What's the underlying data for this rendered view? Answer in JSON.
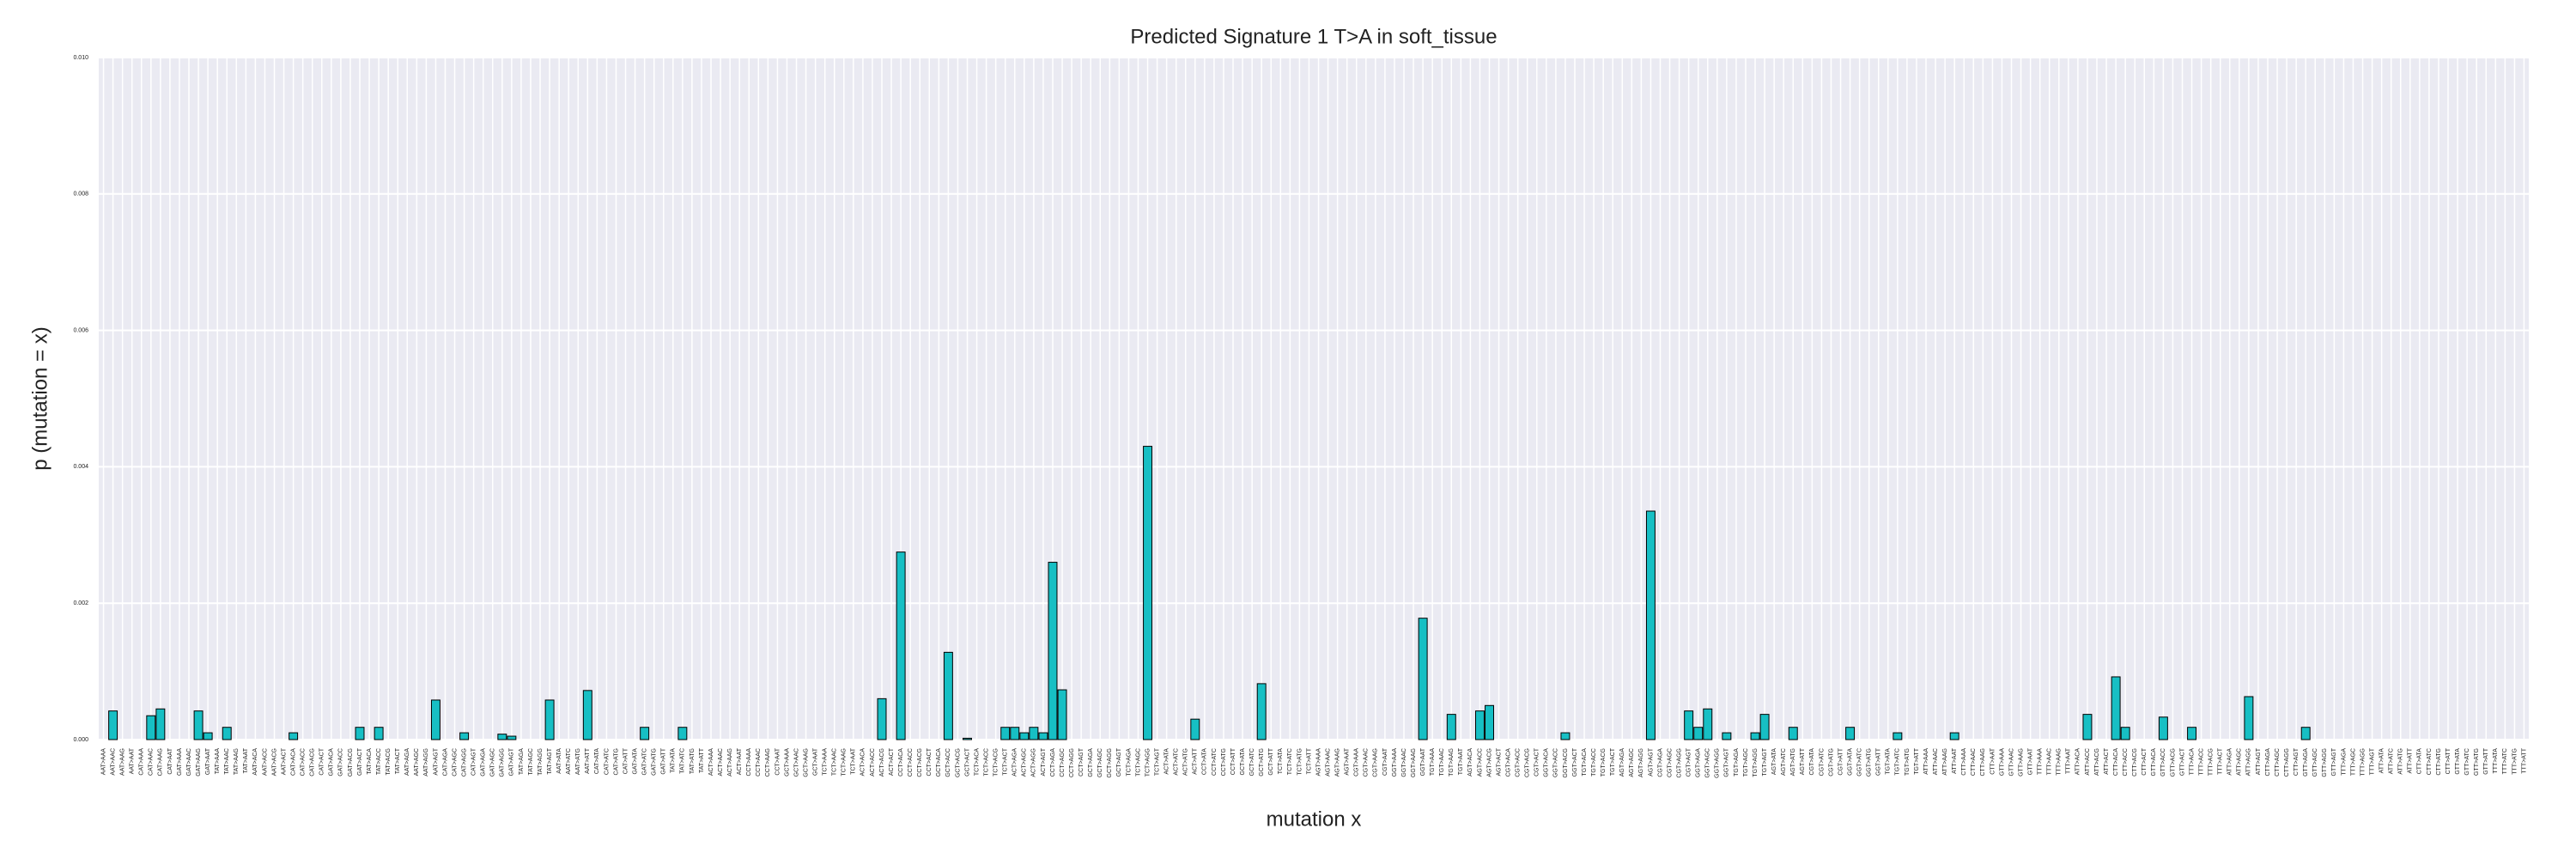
{
  "chart_data": {
    "type": "bar",
    "title": "Predicted Signature 1 T>A in soft_tissue",
    "xlabel": "mutation x",
    "ylabel": "p (mutation = x)",
    "color": "#17bfc4",
    "grid": true,
    "ylim": [
      0,
      0.01
    ],
    "yticks": [
      {
        "value": 0,
        "label": "0.000"
      },
      {
        "value": 0.002,
        "label": "0.002"
      },
      {
        "value": 0.004,
        "label": "0.004"
      },
      {
        "value": 0.006,
        "label": "0.006"
      },
      {
        "value": 0.008,
        "label": "0.008"
      },
      {
        "value": 0.01,
        "label": "0.010"
      }
    ],
    "categories": [
      "AAT>AAA",
      "AAT>AAC",
      "AAT>AAG",
      "AAT>AAT",
      "CAT>AAA",
      "CAT>AAC",
      "CAT>AAG",
      "CAT>AAT",
      "GAT>AAA",
      "GAT>AAC",
      "GAT>AAG",
      "GAT>AAT",
      "TAT>AAA",
      "TAT>AAC",
      "TAT>AAG",
      "TAT>AAT",
      "AAT>ACA",
      "AAT>ACC",
      "AAT>ACG",
      "AAT>ACT",
      "CAT>ACA",
      "CAT>ACC",
      "CAT>ACG",
      "CAT>ACT",
      "GAT>ACA",
      "GAT>ACC",
      "GAT>ACG",
      "GAT>ACT",
      "TAT>ACA",
      "TAT>ACC",
      "TAT>ACG",
      "TAT>ACT",
      "AAT>AGA",
      "AAT>AGC",
      "AAT>AGG",
      "AAT>AGT",
      "CAT>AGA",
      "CAT>AGC",
      "CAT>AGG",
      "CAT>AGT",
      "GAT>AGA",
      "GAT>AGC",
      "GAT>AGG",
      "GAT>AGT",
      "TAT>AGA",
      "TAT>AGC",
      "TAT>AGG",
      "TAT>AGT",
      "AAT>ATA",
      "AAT>ATC",
      "AAT>ATG",
      "AAT>ATT",
      "CAT>ATA",
      "CAT>ATC",
      "CAT>ATG",
      "CAT>ATT",
      "GAT>ATA",
      "GAT>ATC",
      "GAT>ATG",
      "GAT>ATT",
      "TAT>ATA",
      "TAT>ATC",
      "TAT>ATG",
      "TAT>ATT",
      "ACT>AAA",
      "ACT>AAC",
      "ACT>AAG",
      "ACT>AAT",
      "CCT>AAA",
      "CCT>AAC",
      "CCT>AAG",
      "CCT>AAT",
      "GCT>AAA",
      "GCT>AAC",
      "GCT>AAG",
      "GCT>AAT",
      "TCT>AAA",
      "TCT>AAC",
      "TCT>AAG",
      "TCT>AAT",
      "ACT>ACA",
      "ACT>ACC",
      "ACT>ACG",
      "ACT>ACT",
      "CCT>ACA",
      "CCT>ACC",
      "CCT>ACG",
      "CCT>ACT",
      "GCT>ACA",
      "GCT>ACC",
      "GCT>ACG",
      "GCT>ACT",
      "TCT>ACA",
      "TCT>ACC",
      "TCT>ACG",
      "TCT>ACT",
      "ACT>AGA",
      "ACT>AGC",
      "ACT>AGG",
      "ACT>AGT",
      "CCT>AGA",
      "CCT>AGC",
      "CCT>AGG",
      "CCT>AGT",
      "GCT>AGA",
      "GCT>AGC",
      "GCT>AGG",
      "GCT>AGT",
      "TCT>AGA",
      "TCT>AGC",
      "TCT>AGG",
      "TCT>AGT",
      "ACT>ATA",
      "ACT>ATC",
      "ACT>ATG",
      "ACT>ATT",
      "CCT>ATA",
      "CCT>ATC",
      "CCT>ATG",
      "CCT>ATT",
      "GCT>ATA",
      "GCT>ATC",
      "GCT>ATG",
      "GCT>ATT",
      "TCT>ATA",
      "TCT>ATC",
      "TCT>ATG",
      "TCT>ATT",
      "AGT>AAA",
      "AGT>AAC",
      "AGT>AAG",
      "AGT>AAT",
      "CGT>AAA",
      "CGT>AAC",
      "CGT>AAG",
      "CGT>AAT",
      "GGT>AAA",
      "GGT>AAC",
      "GGT>AAG",
      "GGT>AAT",
      "TGT>AAA",
      "TGT>AAC",
      "TGT>AAG",
      "TGT>AAT",
      "AGT>ACA",
      "AGT>ACC",
      "AGT>ACG",
      "AGT>ACT",
      "CGT>ACA",
      "CGT>ACC",
      "CGT>ACG",
      "CGT>ACT",
      "GGT>ACA",
      "GGT>ACC",
      "GGT>ACG",
      "GGT>ACT",
      "TGT>ACA",
      "TGT>ACC",
      "TGT>ACG",
      "TGT>ACT",
      "AGT>AGA",
      "AGT>AGC",
      "AGT>AGG",
      "AGT>AGT",
      "CGT>AGA",
      "CGT>AGC",
      "CGT>AGG",
      "CGT>AGT",
      "GGT>AGA",
      "GGT>AGC",
      "GGT>AGG",
      "GGT>AGT",
      "TGT>AGA",
      "TGT>AGC",
      "TGT>AGG",
      "TGT>AGT",
      "AGT>ATA",
      "AGT>ATC",
      "AGT>ATG",
      "AGT>ATT",
      "CGT>ATA",
      "CGT>ATC",
      "CGT>ATG",
      "CGT>ATT",
      "GGT>ATA",
      "GGT>ATC",
      "GGT>ATG",
      "GGT>ATT",
      "TGT>ATA",
      "TGT>ATC",
      "TGT>ATG",
      "TGT>ATT",
      "ATT>AAA",
      "ATT>AAC",
      "ATT>AAG",
      "ATT>AAT",
      "CTT>AAA",
      "CTT>AAC",
      "CTT>AAG",
      "CTT>AAT",
      "GTT>AAA",
      "GTT>AAC",
      "GTT>AAG",
      "GTT>AAT",
      "TTT>AAA",
      "TTT>AAC",
      "TTT>AAG",
      "TTT>AAT",
      "ATT>ACA",
      "ATT>ACC",
      "ATT>ACG",
      "ATT>ACT",
      "CTT>ACA",
      "CTT>ACC",
      "CTT>ACG",
      "CTT>ACT",
      "GTT>ACA",
      "GTT>ACC",
      "GTT>ACG",
      "GTT>ACT",
      "TTT>ACA",
      "TTT>ACC",
      "TTT>ACG",
      "TTT>ACT",
      "ATT>AGA",
      "ATT>AGC",
      "ATT>AGG",
      "ATT>AGT",
      "CTT>AGA",
      "CTT>AGC",
      "CTT>AGG",
      "CTT>AGT",
      "GTT>AGA",
      "GTT>AGC",
      "GTT>AGG",
      "GTT>AGT",
      "TTT>AGA",
      "TTT>AGC",
      "TTT>AGG",
      "TTT>AGT",
      "ATT>ATA",
      "ATT>ATC",
      "ATT>ATG",
      "ATT>ATT",
      "CTT>ATA",
      "CTT>ATC",
      "CTT>ATG",
      "CTT>ATT",
      "GTT>ATA",
      "GTT>ATC",
      "GTT>ATG",
      "GTT>ATT",
      "TTT>ATA",
      "TTT>ATC",
      "TTT>ATG",
      "TTT>ATT"
    ],
    "values": [
      0,
      0.00042,
      0,
      0,
      0,
      0.00035,
      0.00045,
      0,
      0,
      0,
      0.00042,
      0.0001,
      0,
      0.00018,
      0,
      0,
      0,
      0,
      0,
      0,
      0.0001,
      0,
      0,
      0,
      0,
      0,
      0,
      0.00018,
      0,
      0.00018,
      0,
      0,
      0,
      0,
      0,
      0.00058,
      0,
      0,
      0.0001,
      0,
      0,
      0,
      8e-05,
      5e-05,
      0,
      0,
      0,
      0.00058,
      0,
      0,
      0,
      0.00072,
      0,
      0,
      0,
      0,
      0,
      0.00018,
      0,
      0,
      0,
      0.00018,
      0,
      0,
      0,
      0,
      0,
      0,
      0,
      0,
      0,
      0,
      0,
      0,
      0,
      0,
      0,
      0,
      0,
      0,
      0,
      0,
      0.0006,
      0,
      0.00275,
      0,
      0,
      0,
      0,
      0.00128,
      0,
      2e-05,
      0,
      0,
      0,
      0.00018,
      0.00018,
      0.0001,
      0.00018,
      0.0001,
      0.0026,
      0.00073,
      0,
      0,
      0,
      0,
      0,
      0,
      0,
      0,
      0.0043,
      0,
      0,
      0,
      0,
      0.0003,
      0,
      0,
      0,
      0,
      0,
      0,
      0.00082,
      0,
      0,
      0,
      0,
      0,
      0,
      0,
      0,
      0,
      0,
      0,
      0,
      0,
      0,
      0,
      0,
      0.00178,
      0,
      0,
      0.00037,
      0,
      0,
      0.00042,
      0.0005,
      0,
      0,
      0,
      0,
      0,
      0,
      0,
      0.0001,
      0,
      0,
      0,
      0,
      0,
      0,
      0,
      0,
      0.00335,
      0,
      0,
      0,
      0.00042,
      0.00018,
      0.00045,
      0,
      0.0001,
      0,
      0,
      0.0001,
      0.00037,
      0,
      0,
      0.00018,
      0,
      0,
      0,
      0,
      0,
      0.00018,
      0,
      0,
      0,
      0,
      0.0001,
      0,
      0,
      0,
      0,
      0,
      0.0001,
      0,
      0,
      0,
      0,
      0,
      0,
      0,
      0,
      0,
      0,
      0,
      0,
      0,
      0.00037,
      0,
      0,
      0.00092,
      0.00018,
      0,
      0,
      0,
      0.00033,
      0,
      0,
      0.00018,
      0,
      0,
      0,
      0,
      0,
      0.00063,
      0,
      0,
      0,
      0,
      0,
      0.00018,
      0,
      0,
      0,
      0,
      0,
      0,
      0,
      0,
      0,
      0,
      0,
      0,
      0,
      0,
      0,
      0,
      0,
      0,
      0,
      0,
      0,
      0,
      0
    ]
  }
}
